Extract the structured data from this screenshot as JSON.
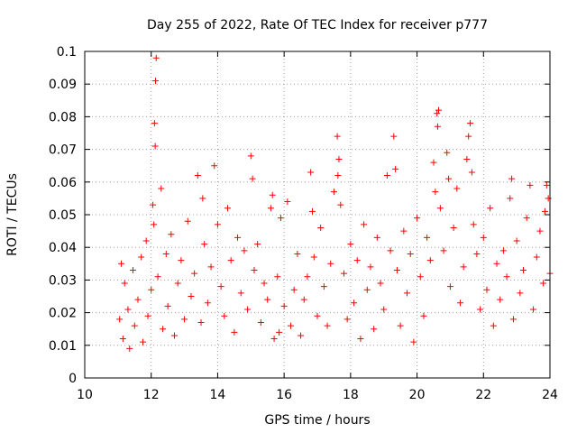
{
  "chart_data": {
    "type": "scatter",
    "title": "Day 255 of 2022, Rate Of TEC Index for receiver p777",
    "xlabel": "GPS time / hours",
    "ylabel": "ROTI / TECUs",
    "xlim": [
      10,
      24
    ],
    "ylim": [
      0,
      0.1
    ],
    "x_ticks": [
      10,
      12,
      14,
      16,
      18,
      20,
      22,
      24
    ],
    "x_tick_labels": [
      "10",
      "12",
      "14",
      "16",
      "18",
      "20",
      "22",
      "24"
    ],
    "y_ticks": [
      0,
      0.01,
      0.02,
      0.03,
      0.04,
      0.05,
      0.06,
      0.07,
      0.08,
      0.09,
      0.1
    ],
    "y_tick_labels": [
      "0",
      "0.01",
      "0.02",
      "0.03",
      "0.04",
      "0.05",
      "0.06",
      "0.07",
      "0.08",
      "0.09",
      "0.1"
    ],
    "grid": true,
    "marker": "+",
    "series_color": "#ff0000",
    "series": [
      {
        "name": "ROTI",
        "points": [
          [
            11.05,
            0.018
          ],
          [
            11.1,
            0.035
          ],
          [
            11.15,
            0.012
          ],
          [
            11.2,
            0.029
          ],
          [
            11.3,
            0.021
          ],
          [
            11.35,
            0.009
          ],
          [
            11.45,
            0.033
          ],
          [
            11.5,
            0.016
          ],
          [
            11.6,
            0.024
          ],
          [
            11.7,
            0.037
          ],
          [
            11.75,
            0.011
          ],
          [
            11.85,
            0.042
          ],
          [
            11.9,
            0.019
          ],
          [
            12.0,
            0.027
          ],
          [
            12.05,
            0.053
          ],
          [
            12.08,
            0.047
          ],
          [
            12.1,
            0.078
          ],
          [
            12.12,
            0.071
          ],
          [
            12.13,
            0.091
          ],
          [
            12.15,
            0.098
          ],
          [
            12.2,
            0.031
          ],
          [
            12.3,
            0.058
          ],
          [
            12.35,
            0.015
          ],
          [
            12.45,
            0.038
          ],
          [
            12.5,
            0.022
          ],
          [
            12.6,
            0.044
          ],
          [
            12.7,
            0.013
          ],
          [
            12.8,
            0.029
          ],
          [
            12.9,
            0.036
          ],
          [
            13.0,
            0.018
          ],
          [
            13.1,
            0.048
          ],
          [
            13.2,
            0.025
          ],
          [
            13.3,
            0.032
          ],
          [
            13.4,
            0.062
          ],
          [
            13.5,
            0.017
          ],
          [
            13.55,
            0.055
          ],
          [
            13.6,
            0.041
          ],
          [
            13.7,
            0.023
          ],
          [
            13.8,
            0.034
          ],
          [
            13.9,
            0.065
          ],
          [
            14.0,
            0.047
          ],
          [
            14.1,
            0.028
          ],
          [
            14.2,
            0.019
          ],
          [
            14.3,
            0.052
          ],
          [
            14.4,
            0.036
          ],
          [
            14.5,
            0.014
          ],
          [
            14.6,
            0.043
          ],
          [
            14.7,
            0.026
          ],
          [
            14.8,
            0.039
          ],
          [
            14.9,
            0.021
          ],
          [
            15.0,
            0.068
          ],
          [
            15.05,
            0.061
          ],
          [
            15.1,
            0.033
          ],
          [
            15.2,
            0.041
          ],
          [
            15.3,
            0.017
          ],
          [
            15.4,
            0.029
          ],
          [
            15.5,
            0.024
          ],
          [
            15.6,
            0.052
          ],
          [
            15.65,
            0.056
          ],
          [
            15.7,
            0.012
          ],
          [
            15.8,
            0.031
          ],
          [
            15.85,
            0.014
          ],
          [
            15.9,
            0.049
          ],
          [
            16.0,
            0.022
          ],
          [
            16.1,
            0.054
          ],
          [
            16.2,
            0.016
          ],
          [
            16.3,
            0.027
          ],
          [
            16.4,
            0.038
          ],
          [
            16.5,
            0.013
          ],
          [
            16.6,
            0.024
          ],
          [
            16.7,
            0.031
          ],
          [
            16.8,
            0.063
          ],
          [
            16.85,
            0.051
          ],
          [
            16.9,
            0.037
          ],
          [
            17.0,
            0.019
          ],
          [
            17.1,
            0.046
          ],
          [
            17.2,
            0.028
          ],
          [
            17.3,
            0.016
          ],
          [
            17.4,
            0.035
          ],
          [
            17.5,
            0.057
          ],
          [
            17.6,
            0.074
          ],
          [
            17.62,
            0.062
          ],
          [
            17.65,
            0.067
          ],
          [
            17.7,
            0.053
          ],
          [
            17.8,
            0.032
          ],
          [
            17.9,
            0.018
          ],
          [
            18.0,
            0.041
          ],
          [
            18.1,
            0.023
          ],
          [
            18.2,
            0.036
          ],
          [
            18.3,
            0.012
          ],
          [
            18.4,
            0.047
          ],
          [
            18.5,
            0.027
          ],
          [
            18.6,
            0.034
          ],
          [
            18.7,
            0.015
          ],
          [
            18.8,
            0.043
          ],
          [
            18.9,
            0.029
          ],
          [
            19.0,
            0.021
          ],
          [
            19.1,
            0.062
          ],
          [
            19.2,
            0.039
          ],
          [
            19.3,
            0.074
          ],
          [
            19.35,
            0.064
          ],
          [
            19.4,
            0.033
          ],
          [
            19.5,
            0.016
          ],
          [
            19.6,
            0.045
          ],
          [
            19.7,
            0.026
          ],
          [
            19.8,
            0.038
          ],
          [
            19.9,
            0.011
          ],
          [
            20.0,
            0.049
          ],
          [
            20.1,
            0.031
          ],
          [
            20.2,
            0.019
          ],
          [
            20.3,
            0.043
          ],
          [
            20.4,
            0.036
          ],
          [
            20.5,
            0.066
          ],
          [
            20.55,
            0.057
          ],
          [
            20.6,
            0.081
          ],
          [
            20.62,
            0.077
          ],
          [
            20.65,
            0.082
          ],
          [
            20.7,
            0.052
          ],
          [
            20.8,
            0.039
          ],
          [
            20.9,
            0.069
          ],
          [
            20.95,
            0.061
          ],
          [
            21.0,
            0.028
          ],
          [
            21.1,
            0.046
          ],
          [
            21.2,
            0.058
          ],
          [
            21.3,
            0.023
          ],
          [
            21.4,
            0.034
          ],
          [
            21.5,
            0.067
          ],
          [
            21.55,
            0.074
          ],
          [
            21.6,
            0.078
          ],
          [
            21.65,
            0.063
          ],
          [
            21.7,
            0.047
          ],
          [
            21.8,
            0.038
          ],
          [
            21.9,
            0.021
          ],
          [
            22.0,
            0.043
          ],
          [
            22.1,
            0.027
          ],
          [
            22.2,
            0.052
          ],
          [
            22.3,
            0.016
          ],
          [
            22.4,
            0.035
          ],
          [
            22.5,
            0.024
          ],
          [
            22.6,
            0.039
          ],
          [
            22.7,
            0.031
          ],
          [
            22.8,
            0.055
          ],
          [
            22.85,
            0.061
          ],
          [
            22.9,
            0.018
          ],
          [
            23.0,
            0.042
          ],
          [
            23.1,
            0.026
          ],
          [
            23.2,
            0.033
          ],
          [
            23.3,
            0.049
          ],
          [
            23.4,
            0.059
          ],
          [
            23.5,
            0.021
          ],
          [
            23.6,
            0.037
          ],
          [
            23.7,
            0.045
          ],
          [
            23.8,
            0.029
          ],
          [
            23.85,
            0.051
          ],
          [
            23.9,
            0.059
          ],
          [
            23.95,
            0.055
          ],
          [
            24.0,
            0.032
          ]
        ]
      }
    ]
  }
}
